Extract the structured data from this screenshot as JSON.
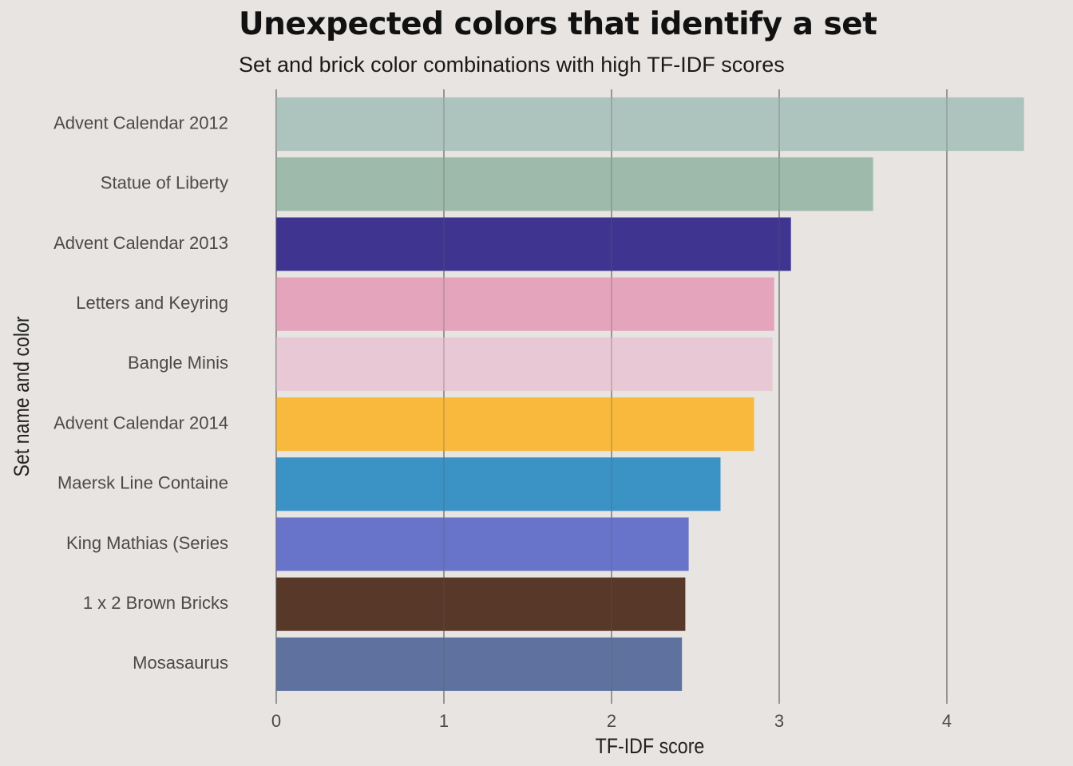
{
  "title": "Unexpected colors that identify a set",
  "subtitle": "Set and brick color combinations with high TF-IDF scores",
  "chart_data": {
    "type": "bar",
    "orientation": "horizontal",
    "title": "Unexpected colors that identify a set",
    "subtitle": "Set and brick color combinations with high TF-IDF scores",
    "xlabel": "TF-IDF score",
    "ylabel": "Set name and color",
    "xlim": [
      0,
      4.5
    ],
    "xticks": [
      0,
      1,
      2,
      3,
      4
    ],
    "grid": "vertical major gridlines",
    "legend": "none",
    "categories": [
      "Advent Calendar 2012",
      "Statue of Liberty",
      "Advent Calendar 2013",
      "Letters and Keyring",
      "Bangle Minis",
      "Advent Calendar 2014",
      "Maersk Line Containe",
      "King Mathias (Series",
      "1 x 2 Brown Bricks",
      "Mosasaurus"
    ],
    "values": [
      4.46,
      3.56,
      3.07,
      2.97,
      2.96,
      2.85,
      2.65,
      2.46,
      2.44,
      2.42
    ],
    "bar_colors": [
      "#adc3be",
      "#9ebaaa",
      "#3f3591",
      "#e4a5bc",
      "#e8c8d5",
      "#f8b93c",
      "#3a92c5",
      "#6874c9",
      "#583829",
      "#5f729f"
    ]
  }
}
